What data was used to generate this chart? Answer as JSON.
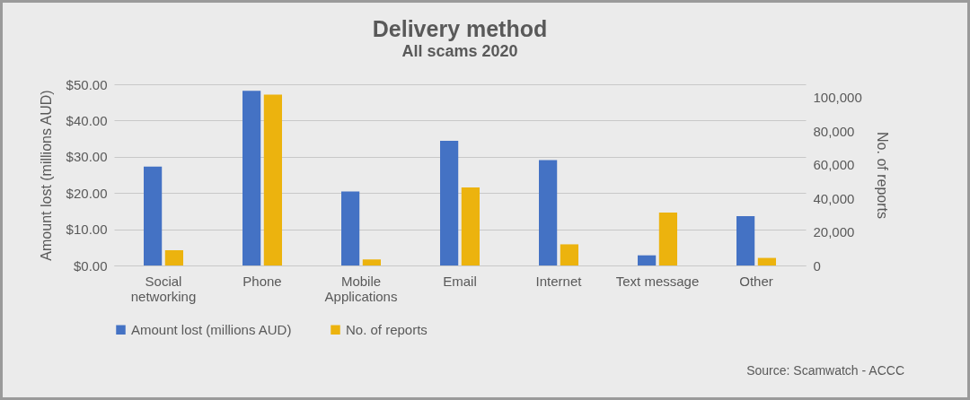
{
  "chart_data": {
    "type": "bar",
    "title": "Delivery method",
    "subtitle": "All scams 2020",
    "ylabel": "Amount lost (millions AUD)",
    "y2label": "No. of reports",
    "categories": [
      "Social networking",
      "Phone",
      "Mobile Applications",
      "Email",
      "Internet",
      "Text message",
      "Other"
    ],
    "series": [
      {
        "name": "Amount lost (millions AUD)",
        "color": "#4472c4",
        "values": [
          27.3,
          48.2,
          20.4,
          34.4,
          29.1,
          2.8,
          13.6
        ]
      },
      {
        "name": "No. of reports",
        "color": "#ecb30e",
        "axis": "y2",
        "values": [
          9100,
          101900,
          3600,
          46500,
          12600,
          31500,
          4500
        ]
      }
    ],
    "ylim": [
      0,
      50
    ],
    "yticks": [
      {
        "value": 0,
        "label": "$0.00"
      },
      {
        "value": 10,
        "label": "$10.00"
      },
      {
        "value": 20,
        "label": "$20.00"
      },
      {
        "value": 30,
        "label": "$30.00"
      },
      {
        "value": 40,
        "label": "$40.00"
      },
      {
        "value": 50,
        "label": "$50.00"
      }
    ],
    "y2lim": [
      0,
      108000
    ],
    "y2ticks": [
      0,
      {
        "value": 20000,
        "label": "20,000"
      },
      {
        "value": 40000,
        "label": "40,000"
      },
      {
        "value": 60000,
        "label": "60,000"
      },
      {
        "value": 80000,
        "label": "80,000"
      },
      {
        "value": 100000,
        "label": "100,000"
      }
    ],
    "grid": "y",
    "legend": "bottom",
    "annotations": [
      "Source: Scamwatch - ACCC"
    ]
  }
}
